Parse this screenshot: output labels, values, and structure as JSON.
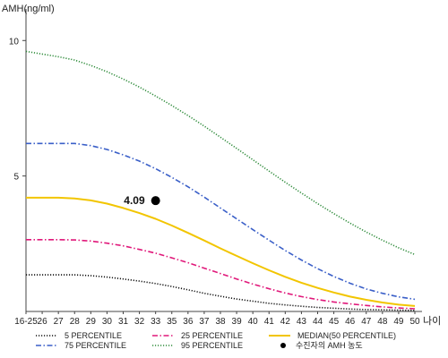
{
  "chart_data": {
    "type": "line",
    "ylabel": "AMH(ng/ml)",
    "xlabel": "나이",
    "categories": [
      "16-25",
      "26",
      "27",
      "28",
      "29",
      "30",
      "31",
      "32",
      "33",
      "35",
      "36",
      "37",
      "38",
      "39",
      "40",
      "41",
      "42",
      "43",
      "44",
      "45",
      "46",
      "47",
      "48",
      "49",
      "50"
    ],
    "ylim": [
      0,
      11
    ],
    "yticks": [
      5,
      10
    ],
    "grid": false,
    "legend_position": "bottom",
    "series": [
      {
        "name": "5 PERCENTILE",
        "color": "#111111",
        "dash": "dotted",
        "values": [
          1.35,
          1.35,
          1.35,
          1.35,
          1.32,
          1.27,
          1.2,
          1.12,
          1.03,
          0.92,
          0.8,
          0.67,
          0.56,
          0.46,
          0.38,
          0.3,
          0.24,
          0.19,
          0.15,
          0.12,
          0.09,
          0.07,
          0.06,
          0.05,
          0.04
        ]
      },
      {
        "name": "25 PERCENTILE",
        "color": "#e0187a",
        "dash": "dashdot",
        "values": [
          2.65,
          2.65,
          2.65,
          2.64,
          2.6,
          2.52,
          2.42,
          2.29,
          2.15,
          1.98,
          1.8,
          1.6,
          1.4,
          1.2,
          1.01,
          0.84,
          0.68,
          0.55,
          0.44,
          0.35,
          0.28,
          0.22,
          0.17,
          0.13,
          0.1
        ]
      },
      {
        "name": "MEDIAN(50 PERCENTILE)",
        "color": "#f2c500",
        "dash": "solid",
        "values": [
          4.2,
          4.2,
          4.2,
          4.17,
          4.1,
          3.98,
          3.82,
          3.63,
          3.42,
          3.17,
          2.9,
          2.62,
          2.33,
          2.05,
          1.78,
          1.52,
          1.28,
          1.06,
          0.87,
          0.7,
          0.55,
          0.43,
          0.33,
          0.25,
          0.2
        ]
      },
      {
        "name": "75 PERCENTILE",
        "color": "#3a5fc8",
        "dash": "dashdot",
        "values": [
          6.2,
          6.2,
          6.2,
          6.2,
          6.12,
          5.98,
          5.78,
          5.55,
          5.27,
          4.95,
          4.6,
          4.22,
          3.82,
          3.42,
          3.02,
          2.63,
          2.25,
          1.9,
          1.58,
          1.29,
          1.04,
          0.83,
          0.67,
          0.54,
          0.45
        ]
      },
      {
        "name": "95 PERCENTILE",
        "color": "#2e8b3a",
        "dash": "dotted",
        "values": [
          9.6,
          9.5,
          9.4,
          9.28,
          9.08,
          8.85,
          8.58,
          8.28,
          7.95,
          7.6,
          7.23,
          6.84,
          6.43,
          6.02,
          5.6,
          5.18,
          4.77,
          4.37,
          3.98,
          3.61,
          3.26,
          2.93,
          2.63,
          2.35,
          2.1
        ]
      }
    ],
    "marker": {
      "name": "수진자의 AMH 농도",
      "category": "33",
      "value": 4.09,
      "label": "4.09",
      "color": "#000000"
    }
  }
}
